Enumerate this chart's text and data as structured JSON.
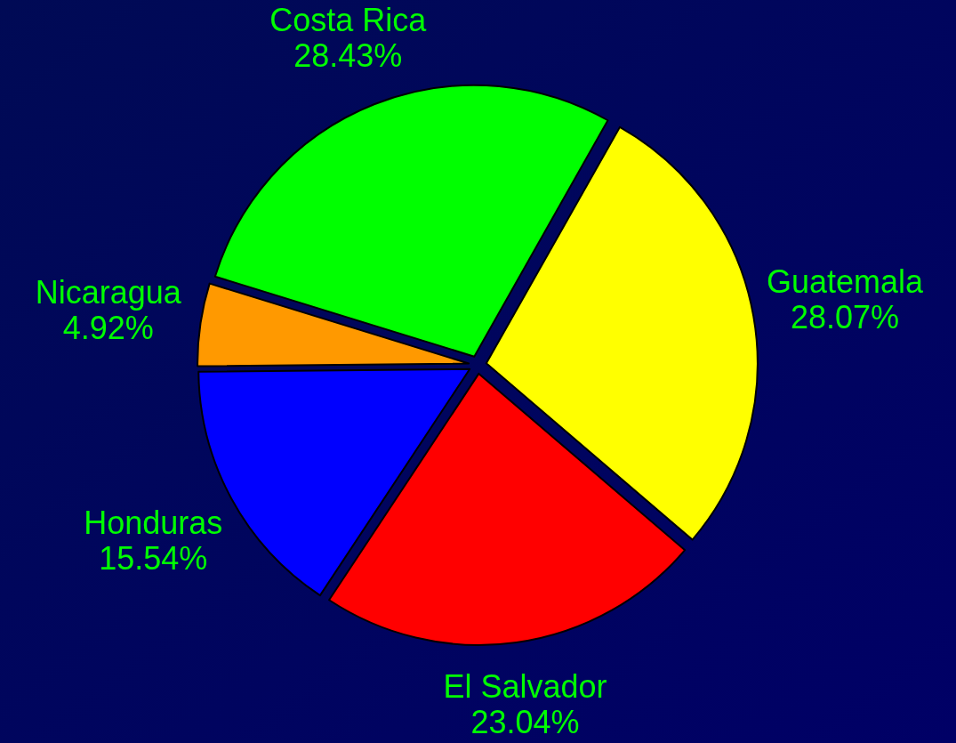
{
  "chart_data": {
    "type": "pie",
    "categories": [
      "Guatemala",
      "El Salvador",
      "Honduras",
      "Nicaragua",
      "Costa Rica"
    ],
    "values": [
      28.07,
      23.04,
      15.54,
      4.92,
      28.43
    ],
    "colors": [
      "#ffff00",
      "#ff0000",
      "#0000ff",
      "#ff9900",
      "#00ff00"
    ],
    "value_labels": [
      "28.07%",
      "23.04%",
      "15.54%",
      "4.92%",
      "28.43%"
    ]
  }
}
